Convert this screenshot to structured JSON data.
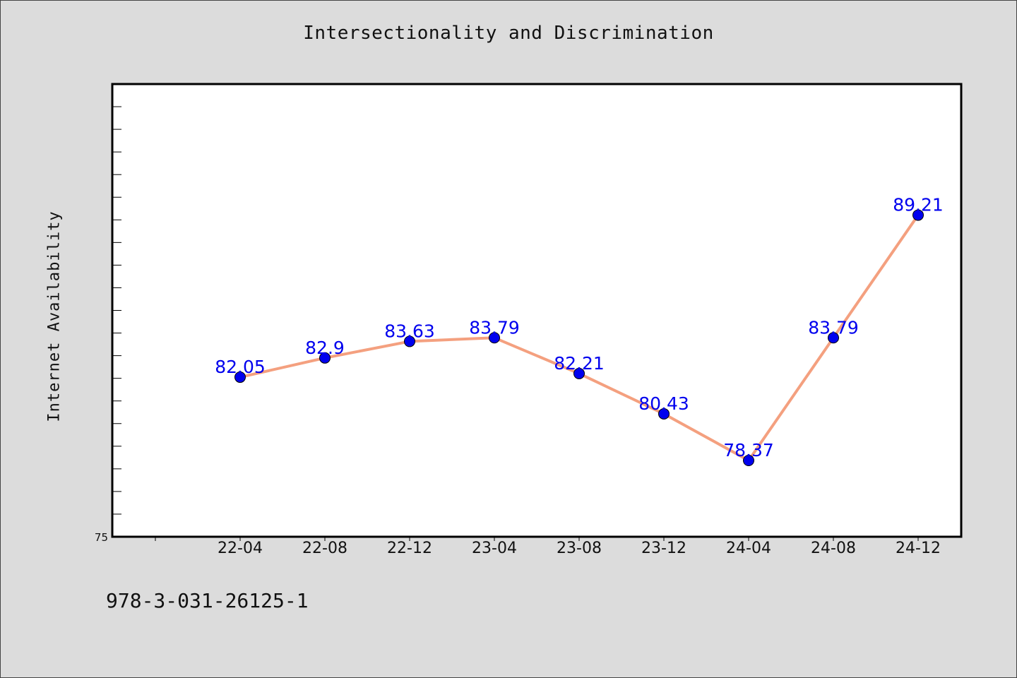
{
  "chart_data": {
    "type": "line",
    "title": "Intersectionality and Discrimination",
    "xlabel": "",
    "ylabel": "Internet Availability",
    "categories": [
      "22-04",
      "22-08",
      "22-12",
      "23-04",
      "23-08",
      "23-12",
      "24-04",
      "24-08",
      "24-12"
    ],
    "series": [
      {
        "values": [
          82.05,
          82.9,
          83.63,
          83.79,
          82.21,
          80.43,
          78.37,
          83.79,
          89.21
        ],
        "labels": [
          "82.05",
          "82.9",
          "83.63",
          "83.79",
          "82.21",
          "80.43",
          "78.37",
          "83.79",
          "89.21"
        ]
      }
    ],
    "ylim": [
      75,
      95
    ],
    "ytick_labels": [
      "75"
    ],
    "grid": false,
    "line_color": "#f4a07f",
    "marker_color": "#0000ee",
    "label_color": "#0000ee"
  },
  "footer": {
    "isbn": "978-3-031-26125-1"
  }
}
